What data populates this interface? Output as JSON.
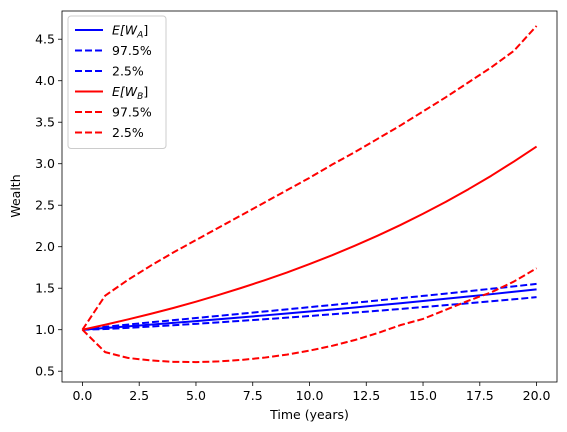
{
  "chart_data": {
    "type": "line",
    "xlabel": "Time (years)",
    "ylabel": "Wealth",
    "xlim": [
      -0.9,
      20.9
    ],
    "ylim": [
      0.37,
      4.84
    ],
    "grid": false,
    "legend_placement": "top-left",
    "xticks": [
      "0.0",
      "2.5",
      "5.0",
      "7.5",
      "10.0",
      "12.5",
      "15.0",
      "17.5",
      "20.0"
    ],
    "yticks": [
      "0.5",
      "1.0",
      "1.5",
      "2.0",
      "2.5",
      "3.0",
      "3.5",
      "4.0",
      "4.5"
    ],
    "x": [
      0,
      1,
      2,
      3,
      4,
      5,
      6,
      7,
      8,
      9,
      10,
      11,
      12,
      13,
      14,
      15,
      16,
      17,
      18,
      19,
      20
    ],
    "series": [
      {
        "name": "E[W_A]",
        "legend_main": "E[W",
        "legend_sub": "A",
        "legend_end": "]",
        "color": "#0000ff",
        "style": "solid",
        "values": [
          1.0,
          1.02,
          1.04,
          1.061,
          1.082,
          1.104,
          1.126,
          1.149,
          1.172,
          1.195,
          1.219,
          1.243,
          1.268,
          1.294,
          1.319,
          1.346,
          1.373,
          1.4,
          1.428,
          1.457,
          1.486
        ]
      },
      {
        "name": "97.5%",
        "legend_main": "97.5%",
        "color": "#0000ff",
        "style": "dashed",
        "values": [
          1.0,
          1.035,
          1.062,
          1.089,
          1.115,
          1.141,
          1.167,
          1.193,
          1.219,
          1.245,
          1.272,
          1.298,
          1.325,
          1.352,
          1.38,
          1.407,
          1.435,
          1.464,
          1.493,
          1.522,
          1.552
        ]
      },
      {
        "name": "2.5%",
        "legend_main": "2.5%",
        "color": "#0000ff",
        "style": "dashed",
        "values": [
          1.0,
          1.008,
          1.022,
          1.038,
          1.054,
          1.071,
          1.089,
          1.107,
          1.126,
          1.145,
          1.165,
          1.186,
          1.207,
          1.228,
          1.25,
          1.273,
          1.296,
          1.319,
          1.343,
          1.367,
          1.392
        ]
      },
      {
        "name": "E[W_B]",
        "legend_main": "E[W",
        "legend_sub": "B",
        "legend_end": "]",
        "color": "#ff0000",
        "style": "solid",
        "values": [
          1.0,
          1.06,
          1.124,
          1.191,
          1.262,
          1.338,
          1.419,
          1.504,
          1.594,
          1.689,
          1.791,
          1.898,
          2.012,
          2.133,
          2.261,
          2.397,
          2.54,
          2.693,
          2.854,
          3.026,
          3.207
        ]
      },
      {
        "name": "97.5%",
        "legend_main": "97.5%",
        "color": "#ff0000",
        "style": "dashed",
        "values": [
          1.0,
          1.41,
          1.6,
          1.77,
          1.93,
          2.08,
          2.23,
          2.38,
          2.53,
          2.68,
          2.83,
          2.99,
          3.14,
          3.3,
          3.46,
          3.63,
          3.8,
          3.98,
          4.16,
          4.36,
          4.66
        ]
      },
      {
        "name": "2.5%",
        "legend_main": "2.5%",
        "color": "#ff0000",
        "style": "dashed",
        "values": [
          1.0,
          0.73,
          0.66,
          0.63,
          0.613,
          0.61,
          0.618,
          0.636,
          0.663,
          0.7,
          0.748,
          0.806,
          0.876,
          0.959,
          1.055,
          1.13,
          1.24,
          1.35,
          1.45,
          1.58,
          1.74
        ]
      }
    ]
  }
}
